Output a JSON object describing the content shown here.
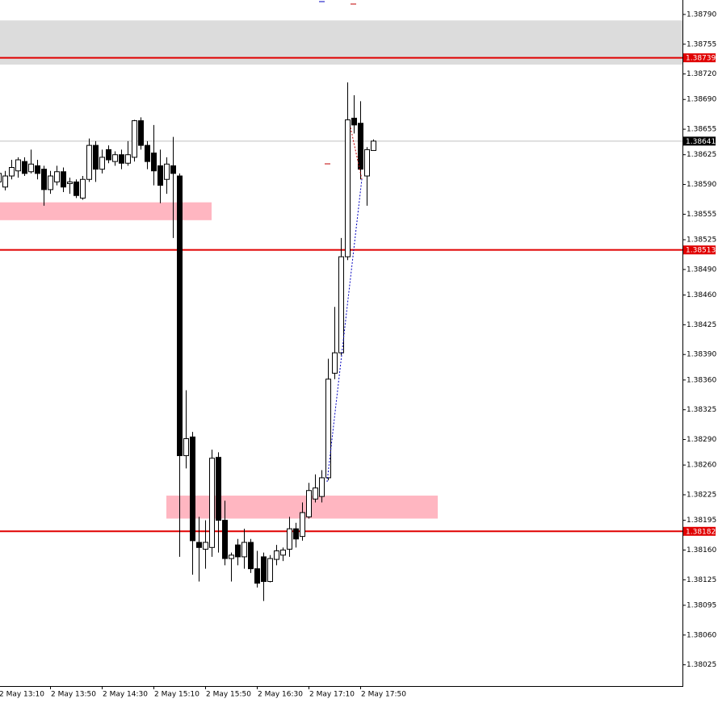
{
  "chart_data": {
    "type": "candlestick",
    "categories": [
      "2 May 13:10",
      null,
      null,
      null,
      null,
      null,
      null,
      null,
      "2 May 13:50",
      null,
      null,
      null,
      null,
      null,
      null,
      null,
      "2 May 14:30",
      null,
      null,
      null,
      null,
      null,
      null,
      null,
      "2 May 15:10",
      null,
      null,
      null,
      null,
      null,
      null,
      null,
      "2 May 15:50",
      null,
      null,
      null,
      null,
      null,
      null,
      null,
      "2 May 16:30",
      null,
      null,
      null,
      null,
      null,
      null,
      null,
      "2 May 17:10",
      null,
      null,
      null,
      null,
      null,
      null,
      null,
      "2 May 17:50",
      null,
      null
    ],
    "open": [
      1.38593,
      1.38587,
      1.386,
      1.38606,
      1.38617,
      1.38605,
      1.38612,
      1.38608,
      1.38584,
      1.38593,
      1.38605,
      1.38591,
      1.38593,
      1.38574,
      1.38596,
      1.38636,
      1.38608,
      1.38631,
      1.38617,
      1.38625,
      1.38615,
      1.38622,
      1.38665,
      1.38636,
      1.38627,
      1.38612,
      1.38596,
      1.38612,
      1.386,
      1.38271,
      1.38293,
      1.38169,
      1.38161,
      1.38163,
      1.38269,
      1.38195,
      1.3815,
      1.38166,
      1.38152,
      1.38169,
      1.38138,
      1.38152,
      1.38123,
      1.38149,
      1.38154,
      1.38161,
      1.38185,
      1.38176,
      1.38199,
      1.3822,
      1.38223,
      1.38245,
      1.38368,
      1.38392,
      1.38505,
      1.38668,
      1.38662,
      1.386,
      1.3863
    ],
    "high": [
      1.38608,
      1.38606,
      1.38619,
      1.38622,
      1.38622,
      1.38631,
      1.38619,
      1.38612,
      1.38606,
      1.38612,
      1.3861,
      1.38598,
      1.38596,
      1.386,
      1.38644,
      1.38641,
      1.38631,
      1.38636,
      1.38629,
      1.38631,
      1.38641,
      1.38666,
      1.38669,
      1.38641,
      1.3866,
      1.38631,
      1.38622,
      1.38646,
      1.38603,
      1.38348,
      1.38299,
      1.38199,
      1.38195,
      1.38278,
      1.38275,
      1.38218,
      1.38157,
      1.38173,
      1.38185,
      1.38173,
      1.38159,
      1.38157,
      1.38154,
      1.38166,
      1.38163,
      1.38199,
      1.38192,
      1.38216,
      1.38239,
      1.38249,
      1.38254,
      1.38385,
      1.38446,
      1.38527,
      1.3871,
      1.38695,
      1.38688,
      1.38634,
      1.38643
    ],
    "low": [
      1.38584,
      1.38583,
      1.38596,
      1.38598,
      1.386,
      1.38603,
      1.38596,
      1.38565,
      1.38579,
      1.38589,
      1.38581,
      1.38579,
      1.38574,
      1.38572,
      1.38593,
      1.38593,
      1.38603,
      1.38615,
      1.38612,
      1.38608,
      1.38612,
      1.38617,
      1.38631,
      1.38608,
      1.38589,
      1.38568,
      1.38579,
      1.38527,
      1.38152,
      1.38256,
      1.38131,
      1.38123,
      1.38138,
      1.38152,
      1.38157,
      1.38142,
      1.38123,
      1.38142,
      1.38138,
      1.38133,
      1.38116,
      1.381,
      1.38122,
      1.38142,
      1.38147,
      1.38152,
      1.38163,
      1.38171,
      1.38197,
      1.38216,
      1.38216,
      1.38242,
      1.38361,
      1.38389,
      1.38501,
      1.3865,
      1.38596,
      1.38565,
      1.3863
    ],
    "close": [
      1.38603,
      1.386,
      1.3861,
      1.38619,
      1.38603,
      1.38614,
      1.38603,
      1.38584,
      1.386,
      1.38605,
      1.38587,
      1.38593,
      1.38577,
      1.38596,
      1.38636,
      1.38608,
      1.38622,
      1.38619,
      1.38625,
      1.38615,
      1.38625,
      1.38665,
      1.38636,
      1.38617,
      1.38606,
      1.38589,
      1.38614,
      1.38603,
      1.38271,
      1.38291,
      1.38171,
      1.38163,
      1.38169,
      1.38268,
      1.38195,
      1.3815,
      1.38154,
      1.38152,
      1.38169,
      1.38138,
      1.38121,
      1.38123,
      1.3815,
      1.38159,
      1.3816,
      1.38185,
      1.38173,
      1.38204,
      1.3823,
      1.38233,
      1.38245,
      1.38361,
      1.38392,
      1.38505,
      1.38666,
      1.3866,
      1.38608,
      1.38631,
      1.38641
    ],
    "up_color": "#ffffff",
    "down_color": "#000000",
    "ylim": [
      1.38,
      1.38807
    ],
    "yticks": [
      {
        "value": 1.3879,
        "label": "1.38790"
      },
      1.38755,
      {
        "value": 1.3872,
        "label": "1.38720"
      },
      {
        "value": 1.3869,
        "label": "1.38690"
      },
      1.38655,
      1.38625,
      {
        "value": 1.3859,
        "label": "1.38590"
      },
      1.38555,
      1.38525,
      {
        "value": 1.3849,
        "label": "1.38490"
      },
      {
        "value": 1.3846,
        "label": "1.38460"
      },
      1.38425,
      {
        "value": 1.3839,
        "label": "1.38390"
      },
      {
        "value": 1.3836,
        "label": "1.38360"
      },
      1.38325,
      {
        "value": 1.3829,
        "label": "1.38290"
      },
      {
        "value": 1.3826,
        "label": "1.38260"
      },
      1.38225,
      1.38195,
      {
        "value": 1.3816,
        "label": "1.38160"
      },
      1.38125,
      1.38095,
      {
        "value": 1.3806,
        "label": "1.38060"
      },
      1.38025
    ],
    "levels": [
      {
        "value": 1.38739,
        "color": "#e00000",
        "label_color": "#e00000"
      },
      {
        "value": 1.38513,
        "color": "#e00000",
        "label_color": "#e00000"
      },
      {
        "value": 1.38182,
        "color": "#e00000",
        "label_color": "#e00000"
      },
      {
        "value": 1.38641,
        "color": "#c0c0c0",
        "label_color": "#000000"
      }
    ],
    "zones": [
      {
        "from": 1.38783,
        "to": 1.38731,
        "color": "#dcdcdc"
      },
      {
        "from": 1.38569,
        "to": 1.38548,
        "color": "#ffb6c1"
      },
      {
        "from": 1.38224,
        "to": 1.38197,
        "color": "#ffb6c1"
      }
    ]
  }
}
